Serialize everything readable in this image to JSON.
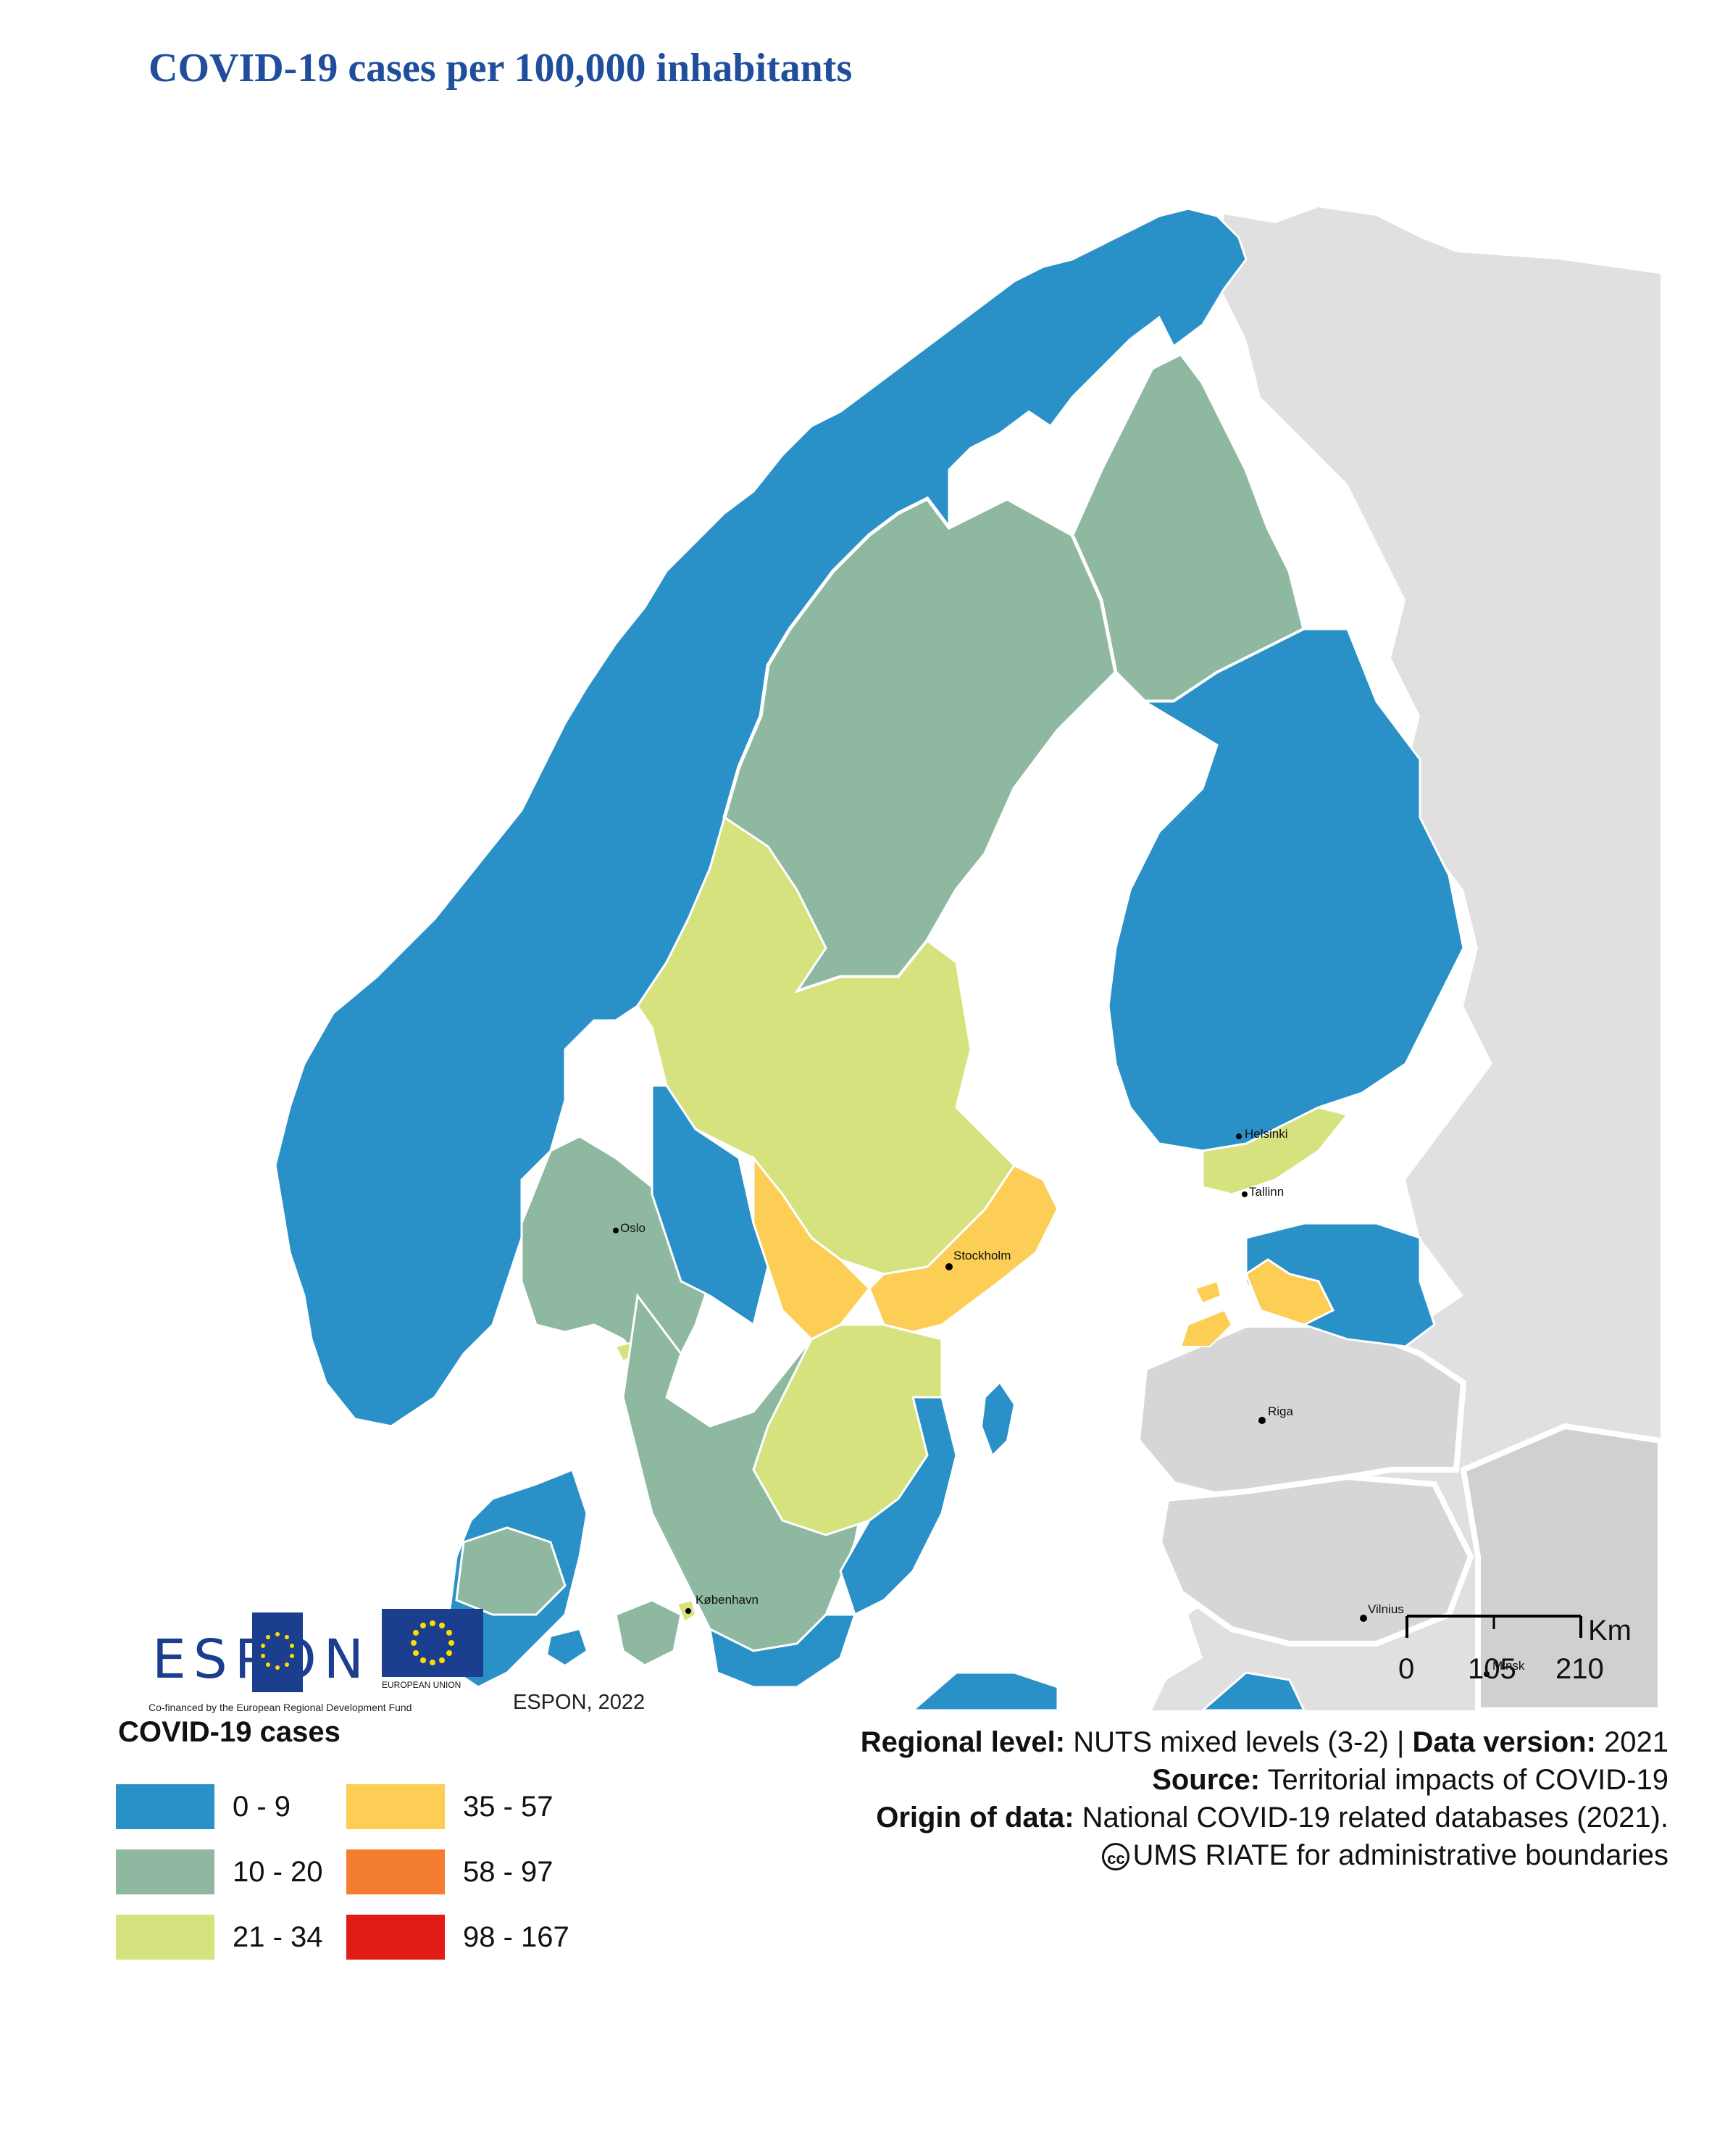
{
  "title": "COVID-19 cases per 100,000 inhabitants",
  "colors": {
    "class_0_9": "#2a91c8",
    "class_10_20": "#8eb8a0",
    "class_21_34": "#d6e27e",
    "class_35_57": "#fcce55",
    "class_58_97": "#f57d2f",
    "class_98_167": "#e11b16",
    "no_data_land": "#e0e0e0",
    "title": "#1f4e9c"
  },
  "cities": [
    "Helsinki",
    "Tallinn",
    "Oslo",
    "Stockholm",
    "Riga",
    "København",
    "Vilnius",
    "Minsk"
  ],
  "scale_bar": {
    "unit": "Km",
    "ticks": [
      "0",
      "105",
      "210"
    ]
  },
  "credit": "ESPON, 2022",
  "logos": {
    "espon_word": "ESPON",
    "eu_label": "EUROPEAN UNION",
    "fund_caption": "Co-financed by the European Regional Development Fund"
  },
  "legend": {
    "title": "COVID-19 cases",
    "items": [
      {
        "label": "0 - 9",
        "color": "#2a91c8"
      },
      {
        "label": "10 - 20",
        "color": "#8eb8a0"
      },
      {
        "label": "21 - 34",
        "color": "#d6e27e"
      },
      {
        "label": "35 - 57",
        "color": "#fcce55"
      },
      {
        "label": "58 - 97",
        "color": "#f57d2f"
      },
      {
        "label": "98 - 167",
        "color": "#e11b16"
      }
    ]
  },
  "meta": {
    "regional_level_label": "Regional level:",
    "regional_level_value": "NUTS mixed levels (3-2) |",
    "data_version_label": "Data version:",
    "data_version_value": "2021",
    "source_label": "Source:",
    "source_value": "Territorial impacts of COVID-19",
    "origin_label": "Origin of data:",
    "origin_value": "National COVID-19 related databases (2021).",
    "cc_symbol": "cc",
    "boundaries": "UMS RIATE for administrative boundaries"
  }
}
